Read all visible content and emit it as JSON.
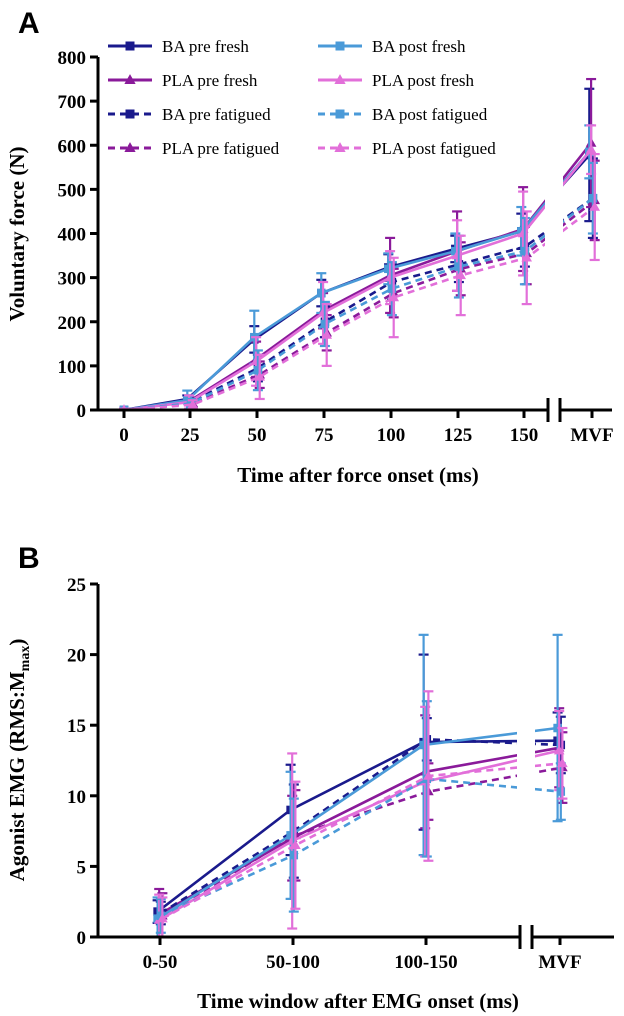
{
  "chart_data": [
    {
      "type": "line",
      "panel_label": "A",
      "xlabel": "Time after force onset (ms)",
      "ylabel": "Voluntary force (N)",
      "ylim": [
        0,
        800
      ],
      "yticks": [
        0,
        100,
        200,
        300,
        400,
        500,
        600,
        700,
        800
      ],
      "categories": [
        "0",
        "25",
        "50",
        "75",
        "100",
        "125",
        "150",
        "MVF"
      ],
      "axis_break": "between 150 and MVF",
      "grid": false,
      "legend_position": "top-left",
      "series": [
        {
          "name": "BA pre fresh",
          "color": "#1a1a8c",
          "dash": "solid",
          "marker": "square",
          "values": [
            0,
            25,
            160,
            265,
            323,
            365,
            405,
            578
          ],
          "errors": [
            3,
            8,
            30,
            30,
            30,
            30,
            40,
            150
          ]
        },
        {
          "name": "PLA pre fresh",
          "color": "#8a1a9a",
          "dash": "solid",
          "marker": "triangle",
          "values": [
            0,
            20,
            115,
            225,
            305,
            360,
            410,
            605
          ],
          "errors": [
            3,
            8,
            40,
            40,
            85,
            90,
            95,
            145
          ]
        },
        {
          "name": "BA pre fatigued",
          "color": "#1a1a8c",
          "dash": "dashed",
          "marker": "square",
          "values": [
            0,
            18,
            95,
            200,
            290,
            330,
            370,
            480
          ],
          "errors": [
            3,
            8,
            30,
            35,
            40,
            40,
            45,
            90
          ]
        },
        {
          "name": "PLA pre fatigued",
          "color": "#8a1a9a",
          "dash": "dashed",
          "marker": "triangle",
          "values": [
            0,
            15,
            80,
            175,
            265,
            320,
            355,
            475
          ],
          "errors": [
            3,
            8,
            30,
            40,
            55,
            60,
            70,
            90
          ]
        },
        {
          "name": "BA post fresh",
          "color": "#4a9ad8",
          "dash": "solid",
          "marker": "square",
          "values": [
            0,
            22,
            165,
            265,
            320,
            360,
            405,
            585
          ],
          "errors": [
            3,
            22,
            60,
            45,
            35,
            40,
            55,
            60
          ]
        },
        {
          "name": "PLA post fresh",
          "color": "#e26fd9",
          "dash": "solid",
          "marker": "triangle",
          "values": [
            0,
            18,
            110,
            220,
            300,
            350,
            400,
            590
          ],
          "errors": [
            3,
            15,
            55,
            70,
            60,
            80,
            95,
            55
          ]
        },
        {
          "name": "BA post fatigued",
          "color": "#4a9ad8",
          "dash": "dashed",
          "marker": "square",
          "values": [
            0,
            15,
            90,
            195,
            275,
            325,
            360,
            480
          ],
          "errors": [
            3,
            10,
            45,
            50,
            60,
            70,
            75,
            80
          ]
        },
        {
          "name": "PLA post fatigued",
          "color": "#e26fd9",
          "dash": "dashed",
          "marker": "triangle",
          "values": [
            0,
            12,
            75,
            170,
            255,
            305,
            345,
            460
          ],
          "errors": [
            3,
            10,
            50,
            70,
            90,
            90,
            105,
            120
          ]
        }
      ]
    },
    {
      "type": "line",
      "panel_label": "B",
      "xlabel": "Time window after EMG onset (ms)",
      "ylabel_main": "Agonist EMG (RMS:M",
      "ylabel_sub": "max",
      "ylabel_close": ")",
      "ylim": [
        0,
        25
      ],
      "yticks": [
        0,
        5,
        10,
        15,
        20,
        25
      ],
      "categories": [
        "0-50",
        "50-100",
        "100-150",
        "MVF"
      ],
      "axis_break": "between 100-150 and MVF",
      "grid": false,
      "series": [
        {
          "name": "BA pre fresh",
          "color": "#1a1a8c",
          "dash": "solid",
          "marker": "square",
          "values": [
            1.8,
            9.0,
            13.8,
            13.9
          ],
          "errors": [
            0.8,
            3.2,
            6.2,
            2.0
          ]
        },
        {
          "name": "PLA pre fresh",
          "color": "#8a1a9a",
          "dash": "solid",
          "marker": "triangle",
          "values": [
            1.6,
            7.0,
            11.7,
            13.4
          ],
          "errors": [
            1.8,
            3.0,
            4.0,
            2.8
          ]
        },
        {
          "name": "BA pre fatigued",
          "color": "#1a1a8c",
          "dash": "dashed",
          "marker": "square",
          "values": [
            1.7,
            7.5,
            14.0,
            13.6
          ],
          "errors": [
            0.8,
            3.3,
            1.5,
            2.0
          ]
        },
        {
          "name": "PLA pre fatigued",
          "color": "#8a1a9a",
          "dash": "dashed",
          "marker": "triangle",
          "values": [
            1.5,
            7.2,
            10.3,
            12.0
          ],
          "errors": [
            1.6,
            3.2,
            2.0,
            2.5
          ]
        },
        {
          "name": "BA post fresh",
          "color": "#4a9ad8",
          "dash": "solid",
          "marker": "square",
          "values": [
            1.3,
            7.2,
            13.6,
            14.8
          ],
          "errors": [
            1.5,
            4.5,
            7.8,
            6.6
          ]
        },
        {
          "name": "PLA post fresh",
          "color": "#e26fd9",
          "dash": "solid",
          "marker": "triangle",
          "values": [
            1.2,
            6.8,
            11.0,
            13.2
          ],
          "errors": [
            1.8,
            6.2,
            5.3,
            2.8
          ]
        },
        {
          "name": "BA post fatigued",
          "color": "#4a9ad8",
          "dash": "dashed",
          "marker": "square",
          "values": [
            1.5,
            5.8,
            11.2,
            10.3
          ],
          "errors": [
            1.2,
            4.0,
            5.5,
            2.0
          ]
        },
        {
          "name": "PLA post fatigued",
          "color": "#e26fd9",
          "dash": "dashed",
          "marker": "triangle",
          "values": [
            1.3,
            6.5,
            11.4,
            12.3
          ],
          "errors": [
            1.5,
            4.5,
            6.0,
            2.5
          ]
        }
      ]
    }
  ]
}
